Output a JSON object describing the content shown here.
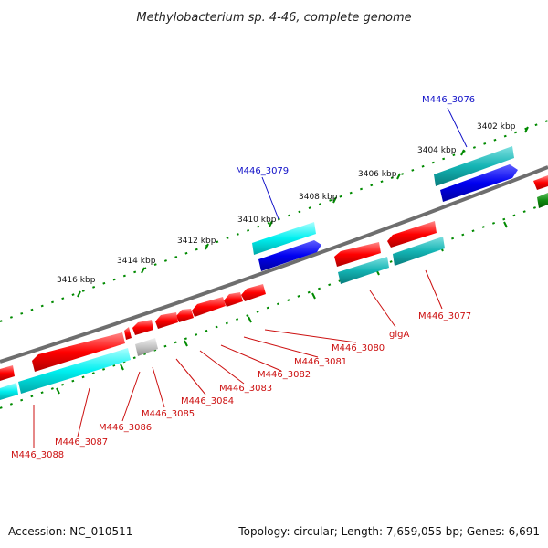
{
  "title": "Methylobacterium sp. 4-46, complete genome",
  "accession": "Accession: NC_010511",
  "topology": "Topology: circular; Length: 7,659,055 bp; Genes: 6,691",
  "colors": {
    "backbone": "#7a7a7a",
    "forward_gene": "#ff0000",
    "reverse_gene": "#ff0000",
    "forward_cds": "#00e5e5",
    "reverse_cds": "#0000ee",
    "teal_cds": "#00b0b0",
    "other_gene": "#c0c0c0",
    "ticks": "#008a00",
    "label_blue": "#1010c8",
    "label_red": "#cc1010"
  },
  "tick_labels": [
    "3402 kbp",
    "3404 kbp",
    "3406 kbp",
    "3408 kbp",
    "3410 kbp",
    "3412 kbp",
    "3414 kbp",
    "3416 kbp"
  ],
  "gene_labels_top": [
    "M446_3076",
    "M446_3079"
  ],
  "gene_labels_bottom": [
    "M446_3077",
    "glgA",
    "M446_3080",
    "M446_3081",
    "M446_3082",
    "M446_3083",
    "M446_3084",
    "M446_3085",
    "M446_3086",
    "M446_3087",
    "M446_3088"
  ]
}
